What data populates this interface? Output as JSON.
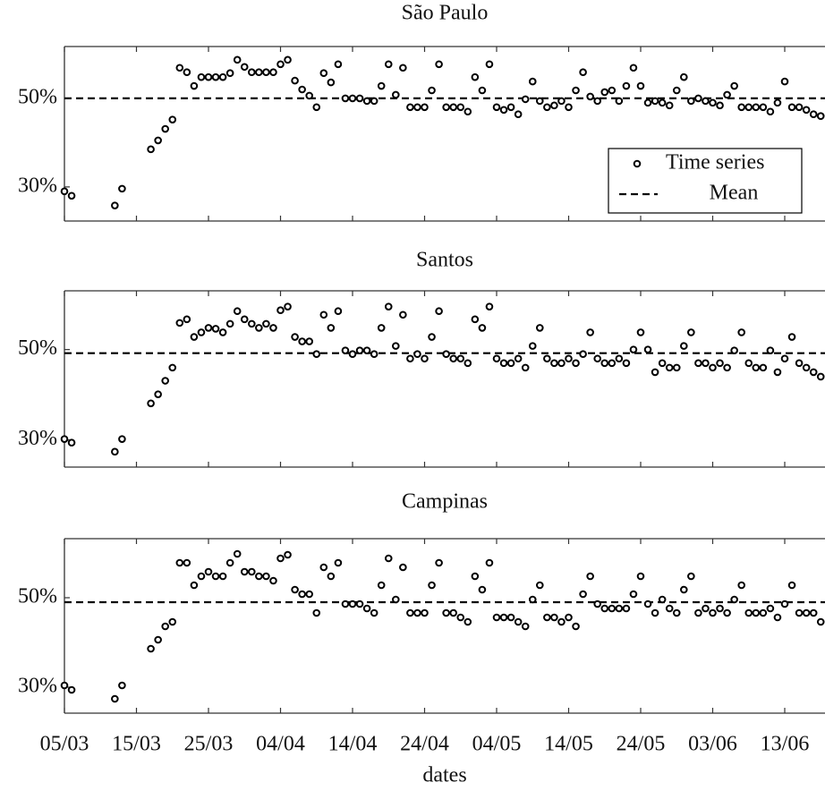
{
  "chart_data": [
    {
      "type": "scatter",
      "title": "São Paulo",
      "series": [
        {
          "name": "Time series",
          "color": "#000000",
          "values": [
            29,
            28,
            null,
            null,
            null,
            null,
            null,
            25.8,
            29.6,
            null,
            null,
            null,
            38.5,
            40.5,
            43.1,
            45.2,
            56.9,
            55.9,
            52.8,
            54.8,
            54.8,
            54.8,
            54.8,
            55.7,
            58.7,
            57.1,
            55.9,
            55.9,
            55.9,
            55.9,
            57.7,
            58.7,
            54,
            52,
            50.6,
            48,
            55.7,
            53.6,
            57.7,
            50,
            50,
            50,
            49.4,
            49.4,
            52.8,
            57.7,
            50.8,
            56.9,
            48,
            48,
            48,
            51.8,
            57.7,
            48,
            48,
            48,
            47,
            54.8,
            51.8,
            57.7,
            48,
            47.4,
            48,
            46.4,
            49.8,
            53.8,
            49.4,
            48,
            48.4,
            49.4,
            48,
            51.8,
            55.9,
            50.4,
            49.4,
            51.4,
            51.8,
            49.4,
            52.8,
            56.9,
            52.8,
            49,
            49.4,
            49,
            48.4,
            51.8,
            54.8,
            49.4,
            50,
            49.4,
            49,
            48.4,
            50.8,
            52.8,
            48,
            48,
            48,
            48,
            47,
            49,
            53.8,
            48,
            48,
            47.4,
            46.4,
            46
          ]
        }
      ],
      "mean": {
        "name": "Mean",
        "value": 50
      },
      "ylim": [
        22.3,
        61.7
      ],
      "yticks": [
        {
          "value": 30,
          "label": "30%"
        },
        {
          "value": 50,
          "label": "50%"
        }
      ],
      "legend": "lower right"
    },
    {
      "type": "scatter",
      "title": "Santos",
      "series": [
        {
          "color": "#000000",
          "values": [
            30.2,
            29.4,
            null,
            null,
            null,
            null,
            null,
            27.4,
            30.2,
            null,
            null,
            null,
            38.1,
            40.1,
            43.1,
            46,
            55.9,
            56.7,
            52.8,
            53.8,
            54.8,
            54.6,
            53.8,
            55.7,
            58.5,
            56.7,
            55.7,
            54.8,
            55.7,
            54.8,
            58.7,
            59.5,
            52.8,
            51.8,
            51.8,
            49,
            57.7,
            54.8,
            58.5,
            49.8,
            49,
            49.8,
            49.8,
            49,
            54.8,
            59.5,
            50.8,
            57.7,
            48,
            49,
            48,
            52.8,
            58.5,
            49,
            48,
            48,
            47,
            56.7,
            54.8,
            59.5,
            48,
            47,
            47,
            48,
            46,
            50.8,
            54.8,
            48,
            47,
            47,
            48,
            47,
            49,
            53.8,
            48,
            47,
            47,
            48,
            47,
            50,
            53.8,
            50,
            45,
            47,
            46,
            46,
            50.8,
            53.8,
            47,
            47,
            46,
            47,
            46,
            49.8,
            53.8,
            47,
            46,
            46,
            49.8,
            45,
            48,
            52.8,
            47,
            46,
            45,
            44
          ]
        }
      ],
      "mean": {
        "value": 49.2
      },
      "ylim": [
        24,
        63
      ],
      "yticks": [
        {
          "value": 30,
          "label": "30%"
        },
        {
          "value": 50,
          "label": "50%"
        }
      ]
    },
    {
      "type": "scatter",
      "title": "Campinas",
      "series": [
        {
          "color": "#000000",
          "values": [
            30.4,
            29.4,
            null,
            null,
            null,
            null,
            null,
            27.4,
            30.4,
            null,
            null,
            null,
            38.6,
            40.6,
            43.6,
            44.6,
            57.8,
            57.8,
            52.8,
            54.8,
            55.8,
            54.8,
            54.8,
            57.8,
            59.8,
            55.8,
            55.8,
            54.8,
            54.8,
            53.8,
            58.8,
            59.6,
            51.8,
            50.8,
            50.8,
            46.6,
            56.8,
            54.8,
            57.8,
            48.6,
            48.6,
            48.6,
            47.6,
            46.6,
            52.8,
            58.8,
            49.6,
            56.8,
            46.6,
            46.6,
            46.6,
            52.8,
            57.8,
            46.6,
            46.6,
            45.6,
            44.6,
            54.8,
            51.8,
            57.8,
            45.6,
            45.6,
            45.6,
            44.6,
            43.6,
            49.6,
            52.8,
            45.6,
            45.6,
            44.6,
            45.6,
            43.6,
            50.8,
            54.8,
            48.6,
            47.6,
            47.6,
            47.6,
            47.6,
            50.8,
            54.8,
            48.6,
            46.6,
            49.6,
            47.6,
            46.6,
            51.8,
            54.8,
            46.6,
            47.6,
            46.6,
            47.6,
            46.6,
            49.6,
            52.8,
            46.6,
            46.6,
            46.6,
            47.6,
            45.6,
            48.6,
            52.8,
            46.6,
            46.6,
            46.6,
            44.6
          ]
        }
      ],
      "mean": {
        "value": 49
      },
      "ylim": [
        24.2,
        63.2
      ],
      "yticks": [
        {
          "value": 30,
          "label": "30%"
        },
        {
          "value": 50,
          "label": "50%"
        }
      ],
      "categories": [
        "05/03",
        null,
        null,
        null,
        null,
        null,
        null,
        null,
        null,
        null,
        "15/03",
        null,
        null,
        null,
        null,
        null,
        null,
        null,
        null,
        null,
        "25/03",
        null,
        null,
        null,
        null,
        null,
        null,
        null,
        null,
        null,
        "04/04",
        null,
        null,
        null,
        null,
        null,
        null,
        null,
        null,
        null,
        "14/04",
        null,
        null,
        null,
        null,
        null,
        null,
        null,
        null,
        null,
        "24/04",
        null,
        null,
        null,
        null,
        null,
        null,
        null,
        null,
        null,
        "04/05",
        null,
        null,
        null,
        null,
        null,
        null,
        null,
        null,
        null,
        "14/05",
        null,
        null,
        null,
        null,
        null,
        null,
        null,
        null,
        null,
        "24/05",
        null,
        null,
        null,
        null,
        null,
        null,
        null,
        null,
        null,
        "03/06",
        null,
        null,
        null,
        null,
        null,
        null,
        null,
        null,
        null,
        "13/06",
        null,
        null,
        null,
        null,
        null
      ],
      "x_label": "dates"
    }
  ]
}
